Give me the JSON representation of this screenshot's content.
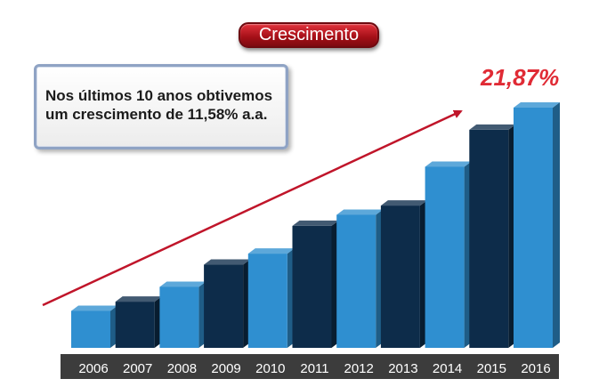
{
  "title": "Crescimento",
  "info_box": {
    "line1": "Nos últimos 10 anos obtivemos",
    "line2": "um crescimento de 11,58% a.a."
  },
  "highlight": "21,87%",
  "colors": {
    "title_red": "#b5121b",
    "highlight_red": "#e02b35",
    "arrow_red": "#c0152a",
    "bar_light": "#2f8fd0",
    "bar_mid": "#1e5f8c",
    "bar_dark": "#0d2c4a",
    "axis_band": "#3c3c3c"
  },
  "chart_data": {
    "type": "bar",
    "categories": [
      "2006",
      "2007",
      "2008",
      "2009",
      "2010",
      "2011",
      "2012",
      "2013",
      "2014",
      "2015",
      "2016"
    ],
    "values": [
      10,
      12.5,
      16.5,
      22.5,
      25.5,
      33,
      36,
      38.5,
      49,
      59,
      65
    ],
    "bar_colors": [
      "#2f8fd0",
      "#0d2c4a",
      "#2f8fd0",
      "#0d2c4a",
      "#2f8fd0",
      "#0d2c4a",
      "#2f8fd0",
      "#0d2c4a",
      "#2f8fd0",
      "#0d2c4a",
      "#2f8fd0"
    ],
    "ylim": [
      0,
      70
    ],
    "grid": false,
    "trend_arrow": true,
    "style": "3d-columns"
  }
}
